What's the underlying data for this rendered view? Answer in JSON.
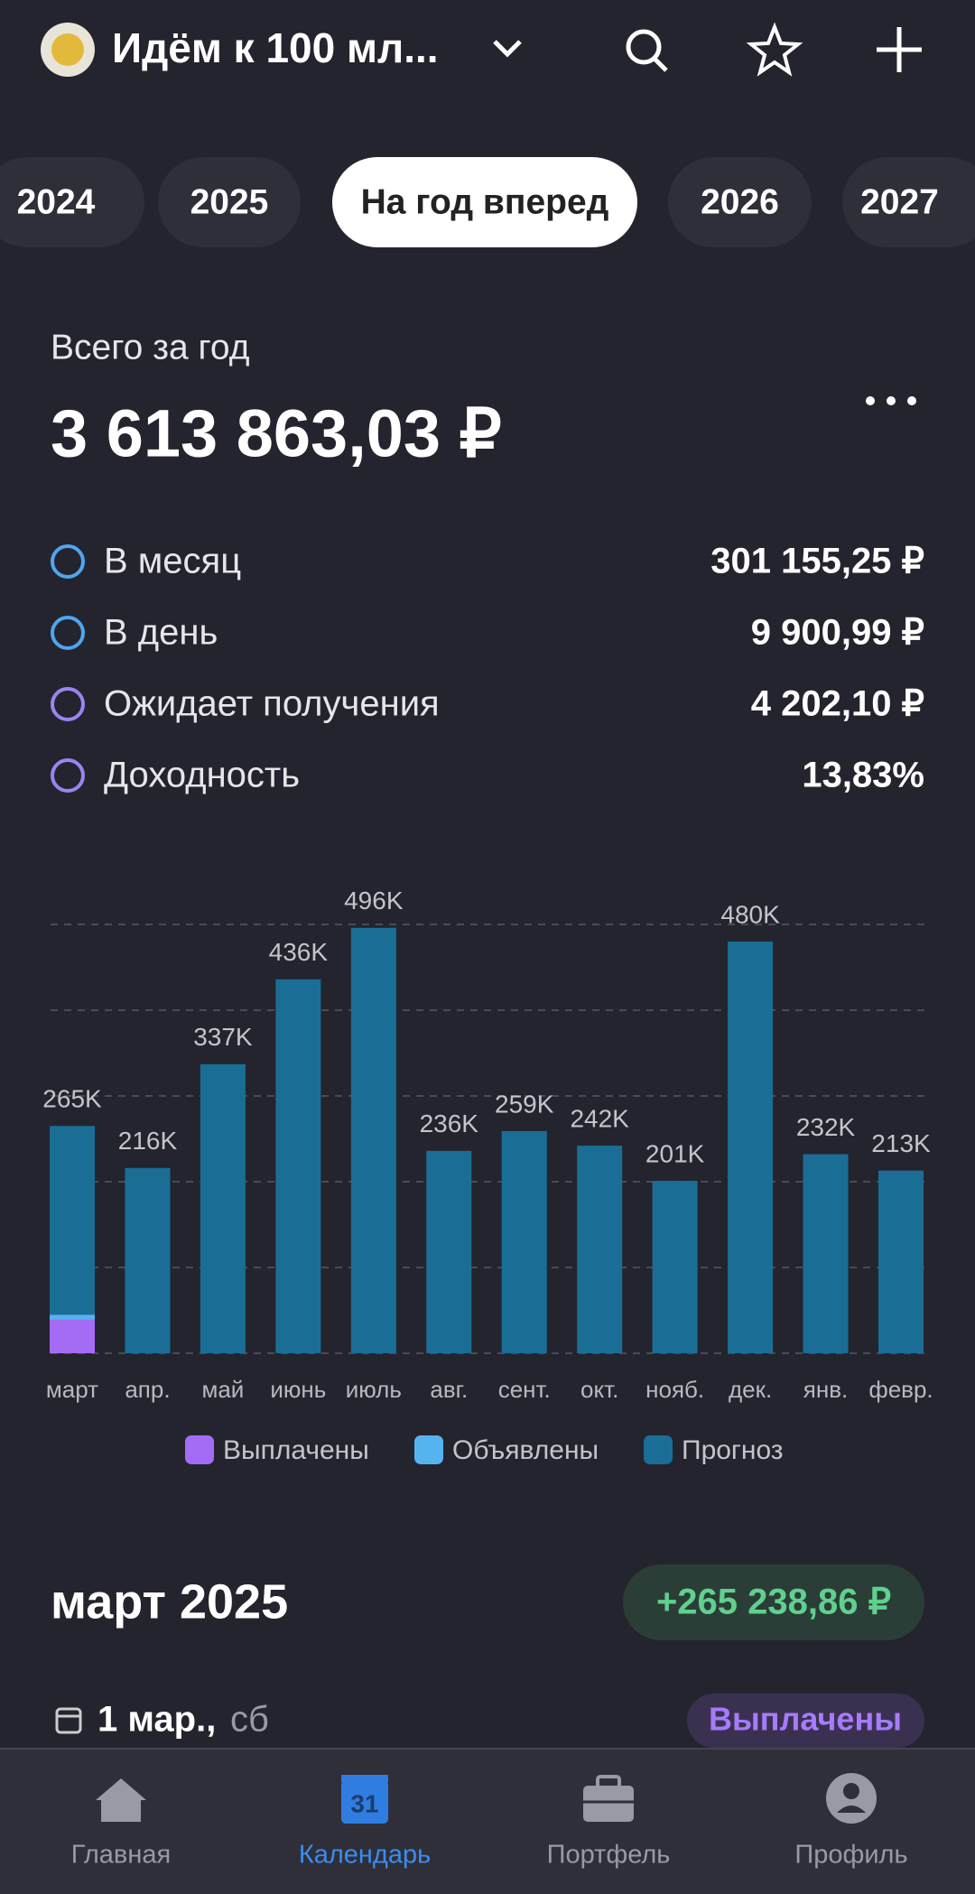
{
  "header": {
    "title": "Идём к 100 мл..."
  },
  "tabs": [
    "2024",
    "2025",
    "На год вперед",
    "2026",
    "2027"
  ],
  "summary": {
    "label": "Всего за год",
    "value": "3 613 863,03 ₽"
  },
  "stats": [
    {
      "label": "В месяц",
      "value": "301 155,25 ₽"
    },
    {
      "label": "В день",
      "value": "9 900,99 ₽"
    },
    {
      "label": "Ожидает получения",
      "value": "4 202,10 ₽"
    },
    {
      "label": "Доходность",
      "value": "13,83%"
    }
  ],
  "chart_data": {
    "type": "stacked_bar",
    "categories": [
      "март",
      "апр.",
      "май",
      "июнь",
      "июль",
      "авг.",
      "сент.",
      "окт.",
      "нояб.",
      "дек.",
      "янв.",
      "февр."
    ],
    "series": [
      {
        "name": "Выплачены",
        "color": "#a46cf5",
        "values": [
          39000,
          0,
          0,
          0,
          0,
          0,
          0,
          0,
          0,
          0,
          0,
          0
        ]
      },
      {
        "name": "Объявлены",
        "color": "#55b3f0",
        "values": [
          6000,
          0,
          0,
          0,
          0,
          0,
          0,
          0,
          0,
          0,
          0,
          0
        ]
      },
      {
        "name": "Прогноз",
        "color": "#1a6e96",
        "values": [
          220000,
          216000,
          337000,
          436000,
          496000,
          236000,
          259000,
          242000,
          201000,
          480000,
          232000,
          213000
        ]
      }
    ],
    "total_labels": [
      "265K",
      "216K",
      "337K",
      "436K",
      "496K",
      "236K",
      "259K",
      "242K",
      "201K",
      "480K",
      "232K",
      "213K"
    ],
    "ylim": [
      0,
      500000
    ],
    "yticks": [
      0,
      100000,
      200000,
      300000,
      400000,
      500000
    ],
    "grid": true
  },
  "section": {
    "title": "март 2025",
    "amount": "+265 238,86 ₽",
    "date": "1 мар.,",
    "weekday": "сб",
    "status": "Выплачены"
  },
  "nav": {
    "calendar_day": "31",
    "items": [
      "Главная",
      "Календарь",
      "Портфель",
      "Профиль"
    ]
  }
}
